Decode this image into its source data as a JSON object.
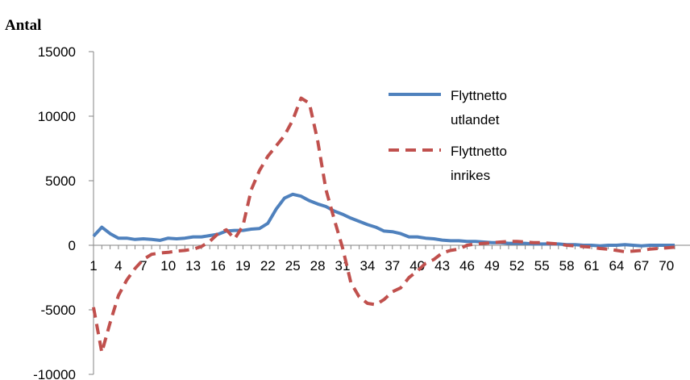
{
  "chart_data": {
    "type": "line",
    "ylabel": "Antal",
    "ylim": [
      -10000,
      15000
    ],
    "yticks": [
      15000,
      10000,
      5000,
      0,
      -5000,
      -10000
    ],
    "x_tick_labels": [
      1,
      4,
      7,
      10,
      13,
      16,
      19,
      22,
      25,
      28,
      31,
      34,
      37,
      40,
      43,
      46,
      49,
      52,
      55,
      58,
      61,
      64,
      67,
      70
    ],
    "x": [
      1,
      2,
      3,
      4,
      5,
      6,
      7,
      8,
      9,
      10,
      11,
      12,
      13,
      14,
      15,
      16,
      17,
      18,
      19,
      20,
      21,
      22,
      23,
      24,
      25,
      26,
      27,
      28,
      29,
      30,
      31,
      32,
      33,
      34,
      35,
      36,
      37,
      38,
      39,
      40,
      41,
      42,
      43,
      44,
      45,
      46,
      47,
      48,
      49,
      50,
      51,
      52,
      53,
      54,
      55,
      56,
      57,
      58,
      59,
      60,
      61,
      62,
      63,
      64,
      65,
      66,
      67,
      68,
      69,
      70,
      71
    ],
    "grid": false,
    "legend_position": "right",
    "series": [
      {
        "name": "Flyttnetto utlandet",
        "color": "#4f81bd",
        "style": "solid",
        "values": [
          700,
          1400,
          900,
          550,
          550,
          450,
          500,
          450,
          380,
          550,
          500,
          550,
          650,
          650,
          750,
          850,
          1100,
          1150,
          1150,
          1250,
          1300,
          1700,
          2800,
          3650,
          3950,
          3800,
          3450,
          3200,
          3000,
          2650,
          2400,
          2100,
          1850,
          1600,
          1400,
          1100,
          1050,
          900,
          650,
          650,
          550,
          500,
          400,
          350,
          350,
          300,
          300,
          250,
          200,
          200,
          150,
          150,
          150,
          100,
          100,
          100,
          100,
          50,
          50,
          0,
          0,
          -50,
          0,
          0,
          50,
          0,
          -50,
          0,
          0,
          0,
          0
        ]
      },
      {
        "name": "Flyttnetto inrikes",
        "color": "#c0504d",
        "style": "dashed",
        "values": [
          -4800,
          -8300,
          -6000,
          -3900,
          -2700,
          -1800,
          -1100,
          -700,
          -600,
          -550,
          -450,
          -400,
          -300,
          -100,
          300,
          900,
          1200,
          500,
          1500,
          4300,
          5800,
          6900,
          7700,
          8500,
          9700,
          11400,
          11000,
          8100,
          4300,
          2000,
          -200,
          -2900,
          -4000,
          -4500,
          -4600,
          -4200,
          -3600,
          -3300,
          -2500,
          -2000,
          -1400,
          -1100,
          -600,
          -400,
          -300,
          0,
          100,
          150,
          200,
          250,
          300,
          300,
          250,
          200,
          200,
          150,
          100,
          0,
          -50,
          -100,
          -150,
          -250,
          -300,
          -400,
          -500,
          -450,
          -400,
          -300,
          -250,
          -200,
          -150
        ]
      }
    ],
    "legend_lines": [
      [
        "Flyttnetto",
        "utlandet"
      ],
      [
        "Flyttnetto",
        "inrikes"
      ]
    ]
  }
}
